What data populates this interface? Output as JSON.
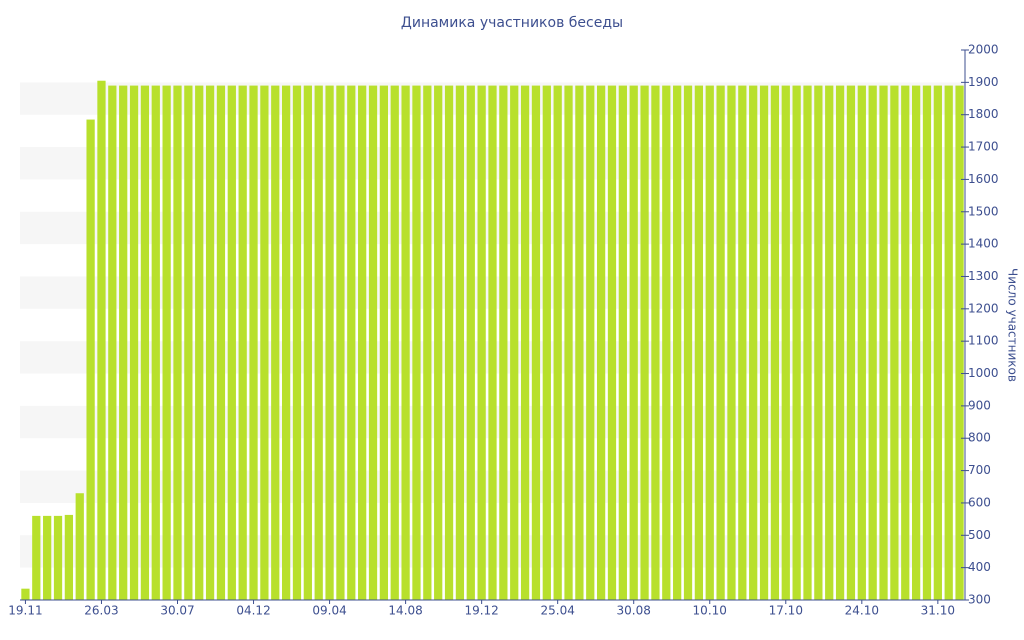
{
  "chart_data": {
    "type": "bar",
    "title": "Динамика участников беседы",
    "y_label": "Число участников",
    "categories": [
      "19.11",
      null,
      null,
      null,
      null,
      null,
      null,
      "26.03",
      null,
      null,
      null,
      null,
      null,
      null,
      "30.07",
      null,
      null,
      null,
      null,
      null,
      null,
      "04.12",
      null,
      null,
      null,
      null,
      null,
      null,
      "09.04",
      null,
      null,
      null,
      null,
      null,
      null,
      "14.08",
      null,
      null,
      null,
      null,
      null,
      null,
      "19.12",
      null,
      null,
      null,
      null,
      null,
      null,
      "25.04",
      null,
      null,
      null,
      null,
      null,
      null,
      "30.08",
      null,
      null,
      null,
      null,
      null,
      null,
      "10.10",
      null,
      null,
      null,
      null,
      null,
      null,
      "17.10",
      null,
      null,
      null,
      null,
      null,
      null,
      "24.10",
      null,
      null,
      null,
      null,
      null,
      null,
      "31.10",
      null,
      null
    ],
    "values": [
      335,
      560,
      560,
      560,
      563,
      630,
      1785,
      1905,
      1890,
      1890,
      1890,
      1890,
      1890,
      1890,
      1890,
      1890,
      1890,
      1890,
      1890,
      1890,
      1890,
      1890,
      1890,
      1890,
      1890,
      1890,
      1890,
      1890,
      1890,
      1890,
      1890,
      1890,
      1890,
      1890,
      1890,
      1890,
      1890,
      1890,
      1890,
      1890,
      1890,
      1890,
      1890,
      1890,
      1890,
      1890,
      1890,
      1890,
      1890,
      1890,
      1890,
      1890,
      1890,
      1890,
      1890,
      1890,
      1890,
      1890,
      1890,
      1890,
      1890,
      1890,
      1890,
      1890,
      1890,
      1890,
      1890,
      1890,
      1890,
      1890,
      1890,
      1890,
      1890,
      1890,
      1890,
      1890,
      1890,
      1890,
      1890,
      1890,
      1890,
      1890,
      1890,
      1890,
      1890,
      1890,
      1890
    ],
    "color": "#b8e02c",
    "ylim": [
      300,
      2000
    ],
    "yticks": [
      300,
      400,
      500,
      600,
      700,
      800,
      900,
      1000,
      1100,
      1200,
      1300,
      1400,
      1500,
      1600,
      1700,
      1800,
      1900,
      2000
    ],
    "y_axis_side": "right",
    "grid": "bands"
  }
}
